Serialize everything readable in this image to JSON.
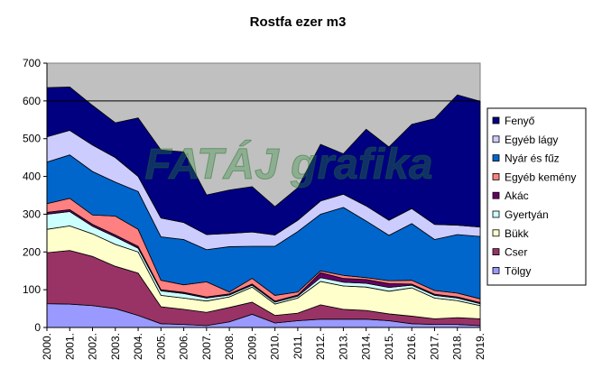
{
  "chart_data": {
    "type": "area",
    "stacked": true,
    "title": "Rostfa ezer m3",
    "xlabel": "",
    "ylabel": "",
    "ylim": [
      0,
      700
    ],
    "yticks": [
      0,
      100,
      200,
      300,
      400,
      500,
      600,
      700
    ],
    "gridlines": [
      600
    ],
    "grid": true,
    "legend_position": "right",
    "plot_background": "#c0c0c0",
    "watermark": "FATÁJ grafika",
    "x": [
      "2000.",
      "2001.",
      "2002.",
      "2003.",
      "2004.",
      "2005.",
      "2006.",
      "2007.",
      "2008.",
      "2009.",
      "2010.",
      "2011.",
      "2012.",
      "2013.",
      "2014.",
      "2015.",
      "2016.",
      "2017.",
      "2018.",
      "2019."
    ],
    "series": [
      {
        "name": "Tölgy",
        "color": "#9999ff",
        "values": [
          63,
          62,
          58,
          50,
          32,
          10,
          8,
          5,
          15,
          35,
          12,
          18,
          22,
          22,
          22,
          18,
          10,
          8,
          8,
          5
        ]
      },
      {
        "name": "Cser",
        "color": "#993366",
        "values": [
          135,
          142,
          130,
          112,
          112,
          45,
          40,
          35,
          38,
          32,
          20,
          20,
          38,
          26,
          23,
          18,
          20,
          15,
          18,
          18
        ]
      },
      {
        "name": "Bükk",
        "color": "#ffffcc",
        "values": [
          62,
          65,
          60,
          58,
          56,
          30,
          30,
          30,
          28,
          40,
          30,
          40,
          62,
          62,
          62,
          60,
          75,
          55,
          45,
          35
        ]
      },
      {
        "name": "Gyertyán",
        "color": "#ccffff",
        "values": [
          40,
          38,
          20,
          20,
          10,
          12,
          12,
          8,
          5,
          5,
          5,
          5,
          10,
          10,
          10,
          10,
          7,
          7,
          7,
          5
        ]
      },
      {
        "name": "Akác",
        "color": "#660066",
        "values": [
          5,
          5,
          5,
          5,
          5,
          3,
          3,
          3,
          3,
          3,
          3,
          3,
          13,
          10,
          10,
          10,
          3,
          3,
          3,
          3
        ]
      },
      {
        "name": "Egyéb kemény",
        "color": "#ff8080",
        "values": [
          23,
          30,
          25,
          50,
          45,
          25,
          20,
          40,
          5,
          15,
          15,
          8,
          5,
          8,
          5,
          8,
          10,
          10,
          10,
          10
        ]
      },
      {
        "name": "Nyár és fűz",
        "color": "#0066cc",
        "values": [
          110,
          115,
          115,
          90,
          100,
          115,
          120,
          85,
          120,
          85,
          130,
          160,
          150,
          180,
          150,
          120,
          150,
          135,
          155,
          165
        ]
      },
      {
        "name": "Egyéb lágy",
        "color": "#ccccff",
        "values": [
          67,
          65,
          70,
          65,
          40,
          50,
          45,
          40,
          35,
          38,
          30,
          30,
          35,
          35,
          40,
          40,
          40,
          40,
          25,
          25
        ]
      },
      {
        "name": "Fenyő",
        "color": "#000080",
        "values": [
          130,
          115,
          105,
          92,
          155,
          180,
          187,
          105,
          115,
          120,
          75,
          86,
          150,
          107,
          203,
          194,
          223,
          280,
          345,
          333
        ]
      }
    ]
  }
}
